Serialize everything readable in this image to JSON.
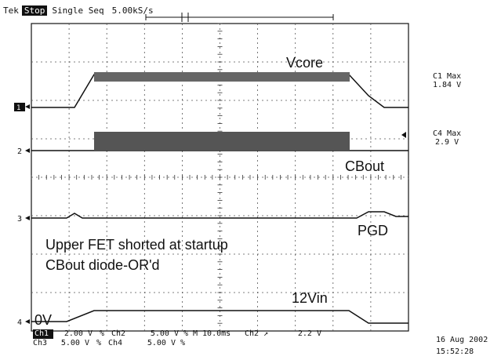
{
  "header": {
    "brand": "Tek",
    "run_state": "Stop",
    "acq_mode": "Single Seq",
    "sample_rate": "5.00kS/s"
  },
  "traces": [
    {
      "id": "1",
      "label": "Vcore"
    },
    {
      "id": "2",
      "label": "CBout"
    },
    {
      "id": "3",
      "label": "PGD"
    },
    {
      "id": "4",
      "label": "12Vin"
    }
  ],
  "annotations": {
    "line1": "Upper FET shorted at startup",
    "line2": "CBout diode-OR'd",
    "ground": "0V"
  },
  "measurements": [
    {
      "name": "C1 Max",
      "value": "1.84 V"
    },
    {
      "name": "C4 Max",
      "value": "2.9 V"
    }
  ],
  "status": {
    "row1": {
      "ch": "Ch1",
      "scale": "2.00 V",
      "sym1": "%",
      "ch2": "Ch2",
      "scale2": "5.00 V",
      "sym2": "%",
      "timebase": "M 10.0ms",
      "trig": "Ch2 ↗",
      "trig_level": "2.2 V"
    },
    "row2": {
      "ch": "Ch3",
      "scale": "5.00 V",
      "sym1": "%",
      "ch2": "Ch4",
      "scale2": "5.00 V",
      "sym2": "%"
    }
  },
  "datetime": {
    "date": "16 Aug 2002",
    "time": "15:52:28"
  }
}
